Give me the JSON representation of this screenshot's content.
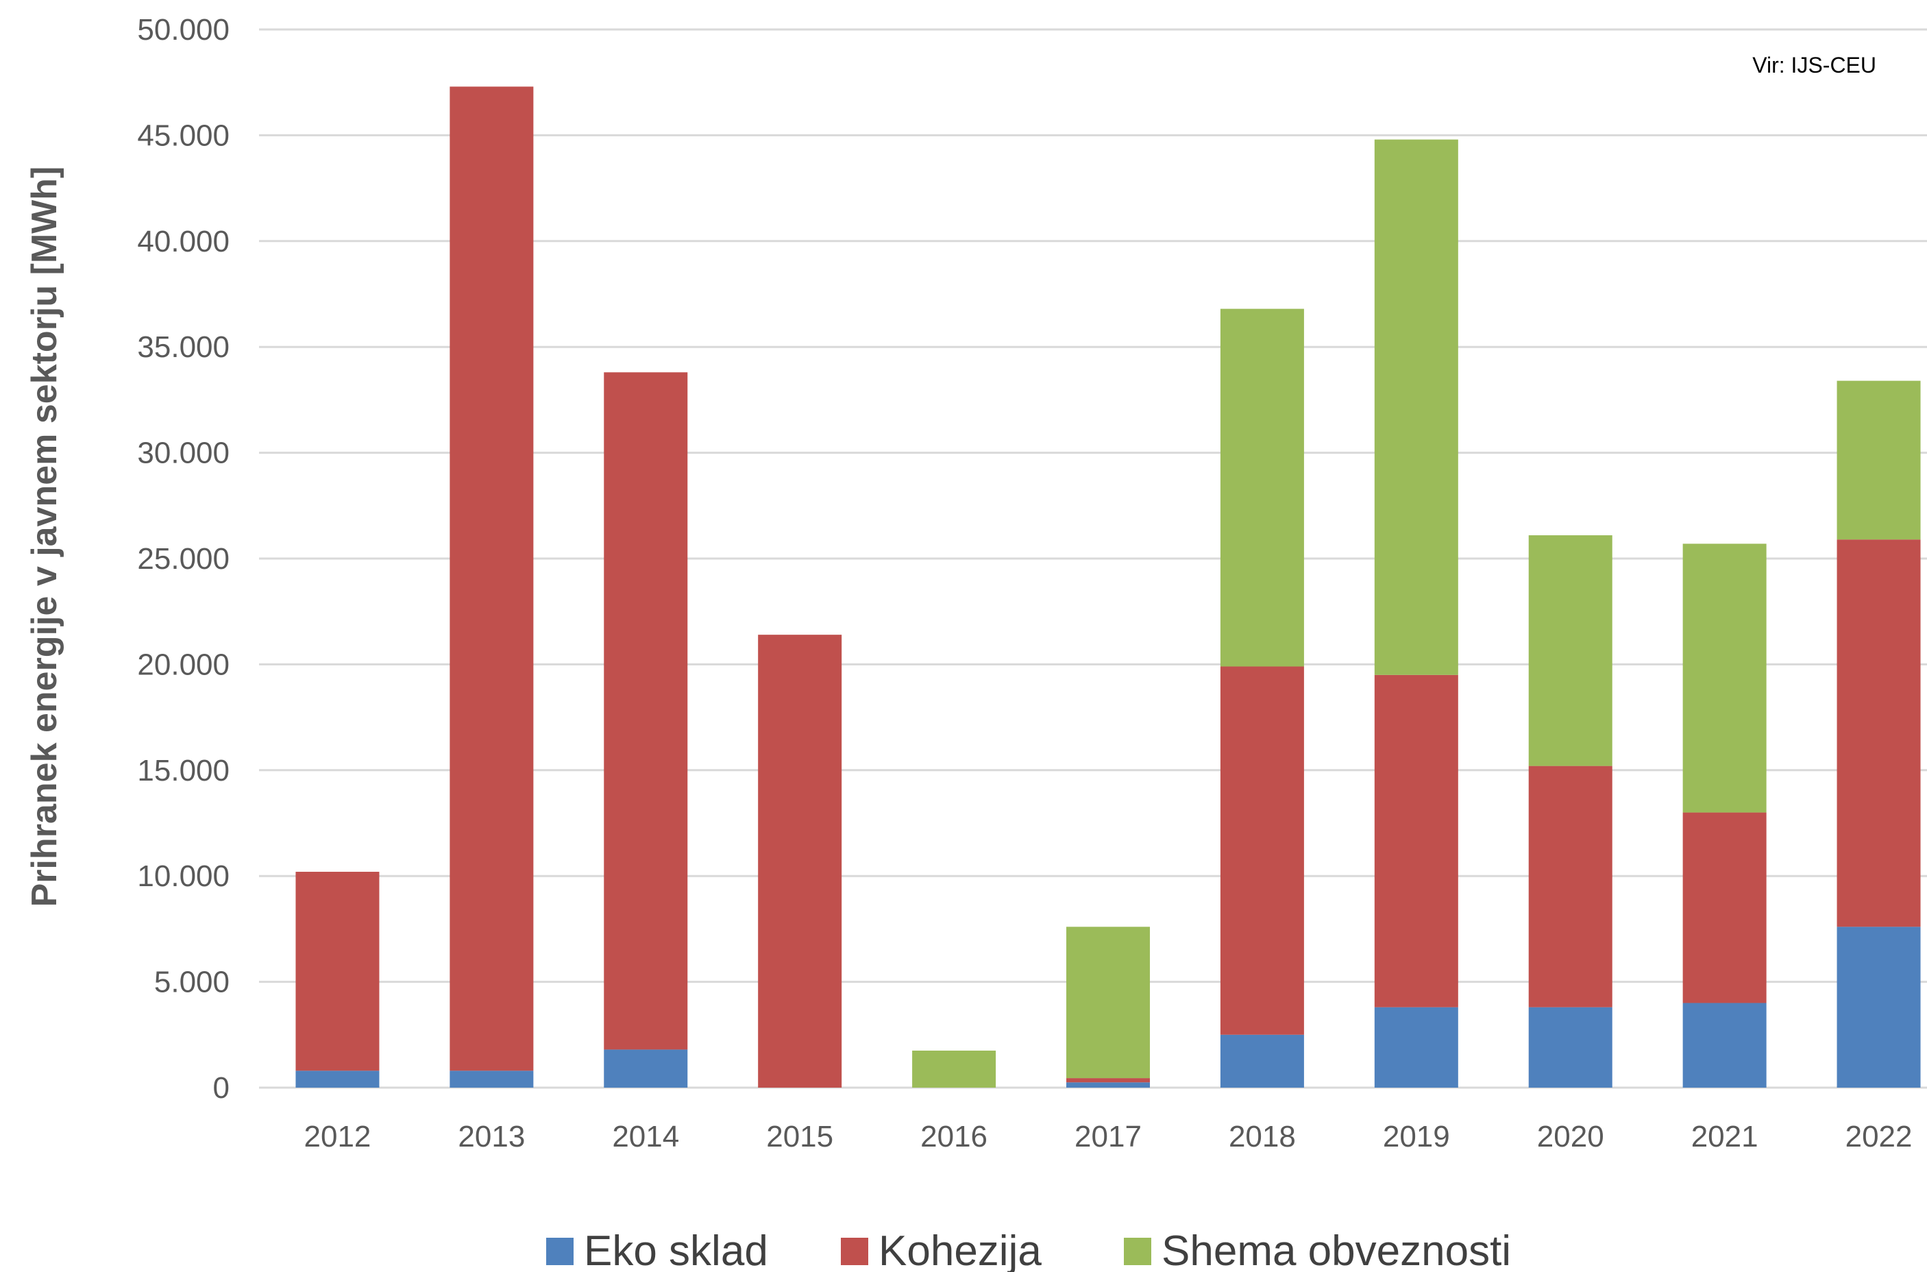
{
  "chart_data": {
    "type": "bar",
    "stacked": true,
    "ylabel": "Prihranek energije v javnem sektorju [MWh]",
    "source": "Vir: IJS-CEU",
    "ylim": [
      0,
      50000
    ],
    "ytick_step": 5000,
    "ytick_labels": [
      "0",
      "5.000",
      "10.000",
      "15.000",
      "20.000",
      "25.000",
      "30.000",
      "35.000",
      "40.000",
      "45.000",
      "50.000"
    ],
    "categories": [
      "2012",
      "2013",
      "2014",
      "2015",
      "2016",
      "2017",
      "2018",
      "2019",
      "2020",
      "2021",
      "2022"
    ],
    "series": [
      {
        "name": "Eko sklad",
        "color": "#4f81bd",
        "values": [
          800,
          800,
          1800,
          0,
          0,
          250,
          2500,
          3800,
          3800,
          4000,
          7600
        ]
      },
      {
        "name": "Kohezija",
        "color": "#c0504d",
        "values": [
          9400,
          46500,
          32000,
          21400,
          0,
          200,
          17400,
          15700,
          11400,
          9000,
          18300
        ]
      },
      {
        "name": "Shema obveznosti",
        "color": "#9bbb59",
        "values": [
          0,
          0,
          0,
          0,
          1750,
          7150,
          16900,
          25300,
          10900,
          12700,
          7500
        ]
      }
    ],
    "grid": true,
    "legend_position": "bottom"
  }
}
